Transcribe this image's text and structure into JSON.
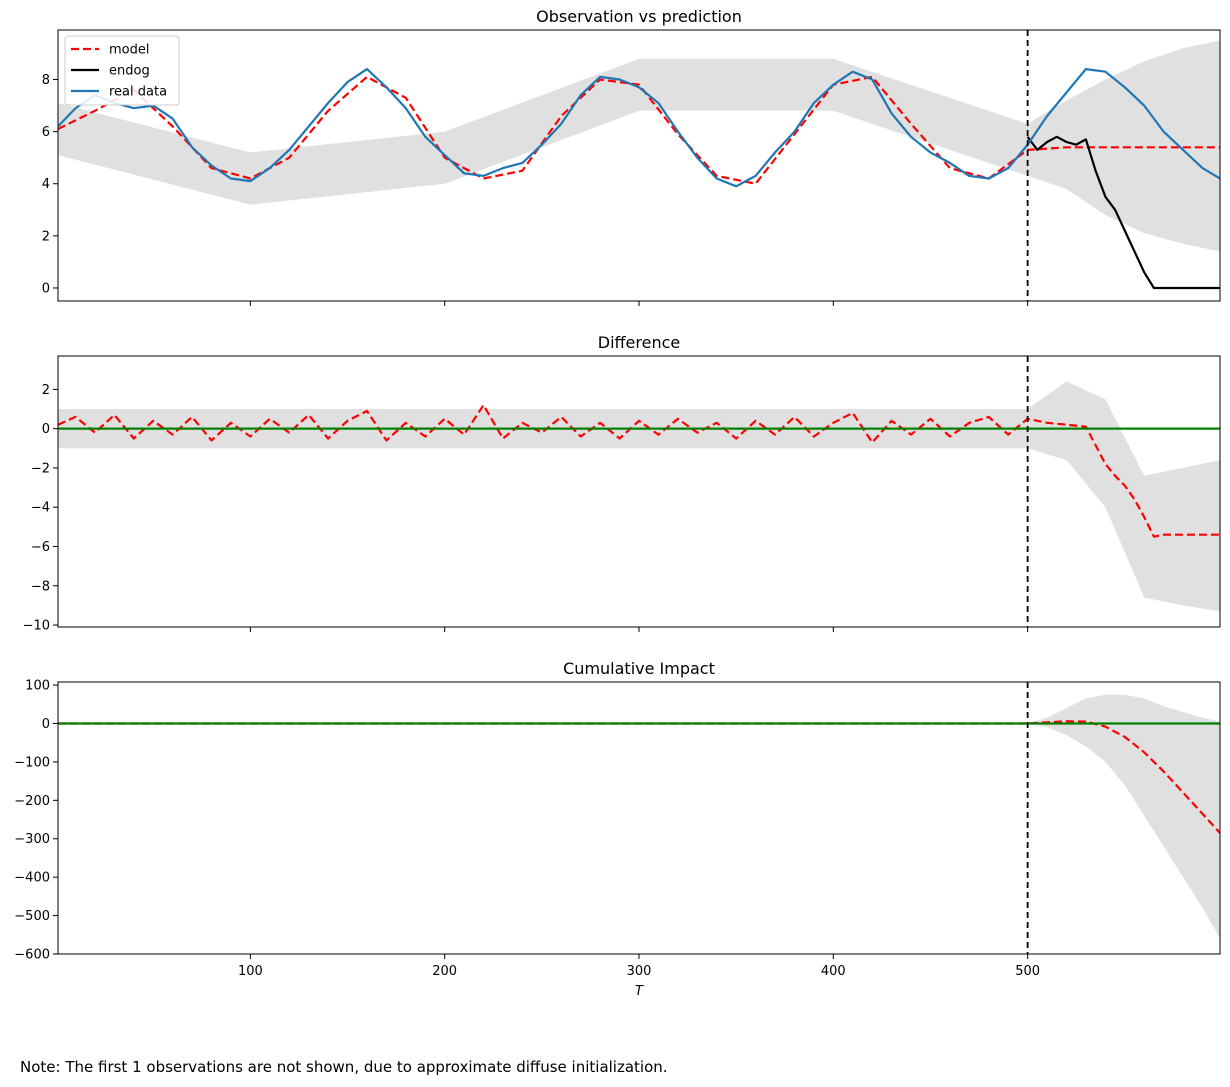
{
  "figure": {
    "note": "Note: The first 1 observations are not shown, due to approximate diffuse initialization.",
    "colors": {
      "model": "#ff0000",
      "endog": "#000000",
      "real": "#1f77b4",
      "band": "#e0e0e0",
      "zero": "#008000"
    }
  },
  "chart_data": [
    {
      "type": "line",
      "title": "Observation vs prediction",
      "xlabel": "",
      "ylabel": "",
      "xlim": [
        1,
        599
      ],
      "ylim": [
        -0.5,
        9.9
      ],
      "yticks": [
        0,
        2,
        4,
        6,
        8
      ],
      "xticks": [
        100,
        200,
        300,
        400,
        500
      ],
      "show_xtick_labels": false,
      "intervention_x": 500,
      "legend": {
        "position": "top-left",
        "entries": [
          "model",
          "endog",
          "real data"
        ]
      },
      "series": [
        {
          "name": "model",
          "style": "dashed",
          "color": "#ff0000",
          "x": [
            1,
            20,
            40,
            60,
            80,
            100,
            120,
            140,
            160,
            180,
            200,
            220,
            240,
            260,
            280,
            300,
            320,
            340,
            360,
            380,
            400,
            420,
            440,
            460,
            480,
            500,
            520,
            540,
            560,
            580,
            599
          ],
          "y": [
            6.1,
            6.8,
            7.6,
            6.2,
            4.6,
            4.2,
            5.0,
            6.8,
            8.1,
            7.3,
            5.0,
            4.2,
            4.5,
            6.6,
            8.0,
            7.8,
            5.9,
            4.3,
            4.0,
            5.9,
            7.8,
            8.1,
            6.3,
            4.6,
            4.2,
            5.3,
            5.4,
            5.4,
            5.4,
            5.4,
            5.4
          ]
        },
        {
          "name": "endog",
          "style": "solid",
          "color": "#000000",
          "x": [
            500,
            505,
            510,
            515,
            520,
            525,
            530,
            535,
            540,
            545,
            550,
            555,
            560,
            565,
            580,
            599
          ],
          "y": [
            5.8,
            5.3,
            5.6,
            5.8,
            5.6,
            5.5,
            5.7,
            4.5,
            3.5,
            3.0,
            2.2,
            1.4,
            0.6,
            0.0,
            0.0,
            0.0
          ]
        },
        {
          "name": "real data",
          "style": "solid",
          "color": "#1f77b4",
          "x": [
            1,
            10,
            20,
            30,
            40,
            50,
            60,
            70,
            80,
            90,
            100,
            110,
            120,
            130,
            140,
            150,
            160,
            170,
            180,
            190,
            200,
            210,
            220,
            230,
            240,
            250,
            260,
            270,
            280,
            290,
            300,
            310,
            320,
            330,
            340,
            350,
            360,
            370,
            380,
            390,
            400,
            410,
            420,
            430,
            440,
            450,
            460,
            470,
            480,
            490,
            500,
            510,
            520,
            530,
            540,
            550,
            560,
            570,
            580,
            590,
            599
          ],
          "y": [
            6.2,
            6.9,
            7.4,
            7.1,
            6.9,
            7.0,
            6.5,
            5.4,
            4.7,
            4.2,
            4.1,
            4.6,
            5.3,
            6.2,
            7.1,
            7.9,
            8.4,
            7.7,
            6.9,
            5.8,
            5.1,
            4.4,
            4.3,
            4.6,
            4.8,
            5.5,
            6.3,
            7.4,
            8.1,
            8.0,
            7.7,
            7.1,
            6.0,
            5.0,
            4.2,
            3.9,
            4.3,
            5.2,
            6.0,
            7.1,
            7.8,
            8.3,
            8.0,
            6.7,
            5.8,
            5.2,
            4.8,
            4.3,
            4.2,
            4.6,
            5.5,
            6.6,
            7.5,
            8.4,
            8.3,
            7.7,
            7.0,
            6.0,
            5.3,
            4.6,
            4.2
          ]
        }
      ],
      "band": {
        "x": [
          1,
          100,
          200,
          300,
          400,
          500,
          520,
          540,
          560,
          580,
          599
        ],
        "lower": [
          5.1,
          3.2,
          4.0,
          6.8,
          6.8,
          4.3,
          3.8,
          2.8,
          2.1,
          1.7,
          1.4
        ],
        "upper": [
          7.1,
          5.2,
          6.0,
          8.8,
          8.8,
          6.3,
          7.2,
          8.0,
          8.7,
          9.2,
          9.5
        ]
      }
    },
    {
      "type": "line",
      "title": "Difference",
      "xlabel": "",
      "ylabel": "",
      "xlim": [
        1,
        599
      ],
      "ylim": [
        -10.1,
        3.7
      ],
      "yticks": [
        -10,
        -8,
        -6,
        -4,
        -2,
        0,
        2
      ],
      "xticks": [
        100,
        200,
        300,
        400,
        500
      ],
      "show_xtick_labels": false,
      "intervention_x": 500,
      "zero_line": 0,
      "series": [
        {
          "name": "difference",
          "style": "dashed",
          "color": "#ff0000",
          "x": [
            1,
            10,
            20,
            30,
            40,
            50,
            60,
            70,
            80,
            90,
            100,
            110,
            120,
            130,
            140,
            150,
            160,
            170,
            180,
            190,
            200,
            210,
            220,
            230,
            240,
            250,
            260,
            270,
            280,
            290,
            300,
            310,
            320,
            330,
            340,
            350,
            360,
            370,
            380,
            390,
            400,
            410,
            420,
            430,
            440,
            450,
            460,
            470,
            480,
            490,
            500,
            510,
            520,
            530,
            540,
            545,
            550,
            555,
            560,
            565,
            570,
            580,
            590,
            599
          ],
          "y": [
            0.2,
            0.6,
            -0.2,
            0.7,
            -0.5,
            0.4,
            -0.3,
            0.6,
            -0.6,
            0.3,
            -0.4,
            0.5,
            -0.2,
            0.7,
            -0.5,
            0.4,
            0.9,
            -0.6,
            0.3,
            -0.4,
            0.5,
            -0.3,
            1.2,
            -0.5,
            0.3,
            -0.2,
            0.6,
            -0.4,
            0.3,
            -0.5,
            0.4,
            -0.3,
            0.5,
            -0.2,
            0.3,
            -0.5,
            0.4,
            -0.3,
            0.6,
            -0.4,
            0.3,
            0.8,
            -0.7,
            0.4,
            -0.3,
            0.5,
            -0.4,
            0.3,
            0.6,
            -0.3,
            0.5,
            0.3,
            0.2,
            0.1,
            -1.8,
            -2.4,
            -2.9,
            -3.6,
            -4.5,
            -5.5,
            -5.4,
            -5.4,
            -5.4,
            -5.4
          ]
        }
      ],
      "band": {
        "x": [
          1,
          100,
          200,
          300,
          400,
          500,
          520,
          540,
          560,
          580,
          599
        ],
        "lower": [
          -1.0,
          -1.0,
          -1.0,
          -1.0,
          -1.0,
          -1.0,
          -1.6,
          -4.0,
          -8.6,
          -9.0,
          -9.3
        ],
        "upper": [
          1.0,
          1.0,
          1.0,
          1.0,
          1.0,
          1.0,
          2.4,
          1.5,
          -2.4,
          -2.0,
          -1.6
        ]
      }
    },
    {
      "type": "line",
      "title": "Cumulative Impact",
      "xlabel": "T",
      "ylabel": "",
      "xlim": [
        1,
        599
      ],
      "ylim": [
        -600,
        108
      ],
      "yticks": [
        -600,
        -500,
        -400,
        -300,
        -200,
        -100,
        0,
        100
      ],
      "xticks": [
        100,
        200,
        300,
        400,
        500
      ],
      "show_xtick_labels": true,
      "intervention_x": 500,
      "zero_line": 0,
      "series": [
        {
          "name": "cumulative impact",
          "style": "dashed",
          "color": "#ff0000",
          "x": [
            1,
            100,
            200,
            300,
            400,
            500,
            510,
            520,
            530,
            540,
            550,
            560,
            570,
            580,
            590,
            599
          ],
          "y": [
            0,
            0,
            0,
            0,
            0,
            0,
            3,
            6,
            5,
            -8,
            -35,
            -75,
            -125,
            -180,
            -235,
            -285
          ]
        }
      ],
      "band": {
        "x": [
          1,
          500,
          510,
          520,
          530,
          540,
          550,
          560,
          570,
          580,
          590,
          599
        ],
        "lower": [
          0,
          0,
          -10,
          -30,
          -60,
          -100,
          -160,
          -240,
          -320,
          -400,
          -480,
          -560
        ],
        "upper": [
          0,
          0,
          15,
          40,
          65,
          75,
          75,
          65,
          45,
          30,
          15,
          5
        ]
      }
    }
  ]
}
